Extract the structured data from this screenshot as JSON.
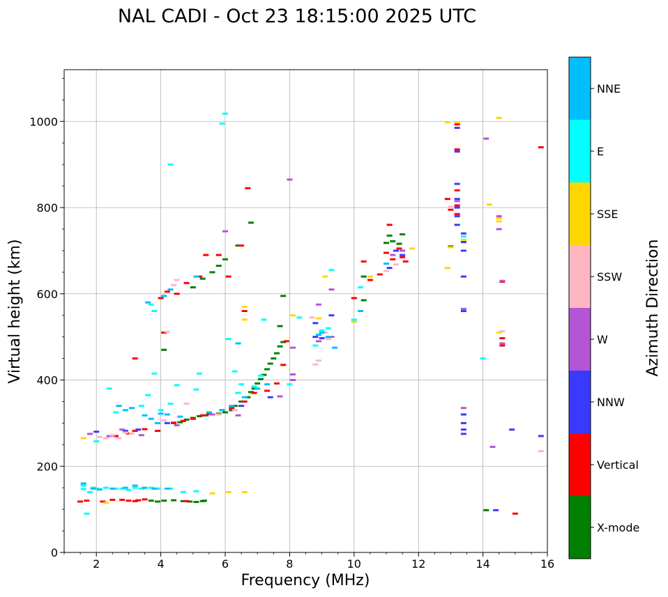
{
  "chart_data": {
    "type": "scatter",
    "title": "NAL CADI - Oct 23 18:15:00 2025 UTC",
    "xlabel": "Frequency (MHz)",
    "ylabel": "Virtual height (km)",
    "xlim": [
      1,
      16
    ],
    "ylim": [
      0,
      1120
    ],
    "xticks": [
      2,
      4,
      6,
      8,
      10,
      12,
      14,
      16
    ],
    "yticks": [
      0,
      200,
      400,
      600,
      800,
      1000
    ],
    "grid": true,
    "colorbar": {
      "label": "Azimuth Direction",
      "categories": [
        "X-mode",
        "Vertical",
        "NNW",
        "W",
        "SSW",
        "SSE",
        "E",
        "NNE"
      ],
      "colors": [
        "#008000",
        "#ff0000",
        "#3a3aff",
        "#b455d5",
        "#ffb6c1",
        "#ffd700",
        "#00ffff",
        "#00bfff"
      ]
    },
    "series": [
      {
        "name": "X-mode",
        "points": [
          [
            3.7,
            120
          ],
          [
            3.9,
            118
          ],
          [
            4.1,
            120
          ],
          [
            4.4,
            121
          ],
          [
            4.7,
            119
          ],
          [
            4.9,
            118
          ],
          [
            5.1,
            117
          ],
          [
            5.3,
            119
          ],
          [
            5.35,
            120
          ],
          [
            4.4,
            300
          ],
          [
            4.6,
            302
          ],
          [
            4.8,
            308
          ],
          [
            5.0,
            312
          ],
          [
            5.2,
            316
          ],
          [
            5.4,
            318
          ],
          [
            5.6,
            320
          ],
          [
            5.8,
            322
          ],
          [
            6.0,
            325
          ],
          [
            6.2,
            330
          ],
          [
            6.3,
            340
          ],
          [
            6.5,
            350
          ],
          [
            6.7,
            360
          ],
          [
            6.8,
            372
          ],
          [
            6.9,
            380
          ],
          [
            7.0,
            392
          ],
          [
            7.1,
            402
          ],
          [
            7.2,
            412
          ],
          [
            7.3,
            425
          ],
          [
            7.4,
            438
          ],
          [
            7.5,
            450
          ],
          [
            7.6,
            462
          ],
          [
            7.7,
            478
          ],
          [
            7.8,
            488
          ],
          [
            7.7,
            525
          ],
          [
            7.8,
            595
          ],
          [
            5.0,
            615
          ],
          [
            5.3,
            635
          ],
          [
            5.6,
            650
          ],
          [
            5.8,
            665
          ],
          [
            6.0,
            680
          ],
          [
            6.4,
            712
          ],
          [
            6.8,
            765
          ],
          [
            4.1,
            470
          ],
          [
            10.3,
            585
          ],
          [
            10.3,
            640
          ],
          [
            11.0,
            718
          ],
          [
            11.1,
            735
          ],
          [
            11.2,
            722
          ],
          [
            11.4,
            716
          ],
          [
            11.5,
            738
          ],
          [
            13.0,
            710
          ],
          [
            14.1,
            98
          ]
        ]
      },
      {
        "name": "Vertical",
        "points": [
          [
            1.5,
            118
          ],
          [
            1.7,
            120
          ],
          [
            2.2,
            118
          ],
          [
            2.5,
            122
          ],
          [
            2.8,
            122
          ],
          [
            3.0,
            120
          ],
          [
            3.2,
            119
          ],
          [
            3.3,
            121
          ],
          [
            3.5,
            123
          ],
          [
            4.8,
            119
          ],
          [
            4.4,
            301
          ],
          [
            4.7,
            305
          ],
          [
            5.0,
            310
          ],
          [
            5.3,
            318
          ],
          [
            5.5,
            322
          ],
          [
            5.9,
            330
          ],
          [
            6.2,
            335
          ],
          [
            6.6,
            350
          ],
          [
            6.9,
            370
          ],
          [
            7.3,
            375
          ],
          [
            7.6,
            392
          ],
          [
            7.8,
            435
          ],
          [
            7.9,
            490
          ],
          [
            2.6,
            270
          ],
          [
            3.0,
            276
          ],
          [
            3.2,
            282
          ],
          [
            3.5,
            286
          ],
          [
            3.9,
            282
          ],
          [
            4.0,
            590
          ],
          [
            4.2,
            605
          ],
          [
            4.5,
            600
          ],
          [
            4.8,
            625
          ],
          [
            5.2,
            640
          ],
          [
            5.4,
            690
          ],
          [
            5.8,
            690
          ],
          [
            6.1,
            640
          ],
          [
            6.5,
            712
          ],
          [
            6.6,
            560
          ],
          [
            6.7,
            845
          ],
          [
            3.2,
            450
          ],
          [
            4.1,
            510
          ],
          [
            10.0,
            590
          ],
          [
            10.3,
            675
          ],
          [
            10.5,
            632
          ],
          [
            10.8,
            645
          ],
          [
            11.0,
            695
          ],
          [
            11.2,
            680
          ],
          [
            11.4,
            705
          ],
          [
            11.5,
            685
          ],
          [
            11.6,
            675
          ],
          [
            11.1,
            760
          ],
          [
            12.9,
            820
          ],
          [
            13.0,
            795
          ],
          [
            13.2,
            840
          ],
          [
            13.2,
            805
          ],
          [
            13.2,
            785
          ],
          [
            13.2,
            935
          ],
          [
            13.2,
            993
          ],
          [
            14.6,
            480
          ],
          [
            14.6,
            497
          ],
          [
            14.6,
            628
          ],
          [
            15.0,
            90
          ],
          [
            15.8,
            940
          ]
        ]
      },
      {
        "name": "NNW",
        "points": [
          [
            2.0,
            280
          ],
          [
            2.9,
            282
          ],
          [
            3.3,
            285
          ],
          [
            4.2,
            300
          ],
          [
            6.5,
            340
          ],
          [
            7.4,
            360
          ],
          [
            8.8,
            500
          ],
          [
            8.8,
            532
          ],
          [
            9.0,
            497
          ],
          [
            9.3,
            550
          ],
          [
            11.3,
            700
          ],
          [
            11.1,
            660
          ],
          [
            11.5,
            690
          ],
          [
            13.2,
            855
          ],
          [
            13.2,
            820
          ],
          [
            13.2,
            800
          ],
          [
            13.2,
            780
          ],
          [
            13.2,
            760
          ],
          [
            13.2,
            930
          ],
          [
            13.2,
            985
          ],
          [
            13.4,
            740
          ],
          [
            13.4,
            720
          ],
          [
            13.4,
            700
          ],
          [
            13.4,
            560
          ],
          [
            13.4,
            640
          ],
          [
            13.4,
            320
          ],
          [
            13.4,
            300
          ],
          [
            13.4,
            285
          ],
          [
            13.4,
            275
          ],
          [
            14.4,
            98
          ],
          [
            14.9,
            285
          ],
          [
            15.8,
            270
          ]
        ]
      },
      {
        "name": "W",
        "points": [
          [
            1.8,
            275
          ],
          [
            2.4,
            270
          ],
          [
            2.8,
            285
          ],
          [
            3.4,
            272
          ],
          [
            4.5,
            295
          ],
          [
            5.6,
            320
          ],
          [
            6.4,
            318
          ],
          [
            7.7,
            362
          ],
          [
            8.1,
            400
          ],
          [
            8.1,
            413
          ],
          [
            8.1,
            475
          ],
          [
            8.9,
            490
          ],
          [
            8.9,
            575
          ],
          [
            9.3,
            500
          ],
          [
            9.3,
            610
          ],
          [
            11.2,
            690
          ],
          [
            11.5,
            700
          ],
          [
            13.2,
            815
          ],
          [
            13.4,
            565
          ],
          [
            13.4,
            335
          ],
          [
            14.1,
            960
          ],
          [
            14.3,
            245
          ],
          [
            14.5,
            780
          ],
          [
            14.5,
            750
          ],
          [
            14.6,
            485
          ],
          [
            14.6,
            630
          ],
          [
            8.0,
            865
          ],
          [
            6.0,
            745
          ]
        ]
      },
      {
        "name": "SSW",
        "points": [
          [
            2.1,
            268
          ],
          [
            2.3,
            265
          ],
          [
            2.5,
            272
          ],
          [
            2.7,
            265
          ],
          [
            2.9,
            278
          ],
          [
            3.1,
            276
          ],
          [
            4.1,
            306
          ],
          [
            4.2,
            512
          ],
          [
            4.4,
            620
          ],
          [
            4.8,
            345
          ],
          [
            5.8,
            320
          ],
          [
            6.3,
            330
          ],
          [
            8.7,
            545
          ],
          [
            8.8,
            436
          ],
          [
            8.9,
            445
          ],
          [
            9.1,
            510
          ],
          [
            9.2,
            495
          ],
          [
            11.0,
            653
          ],
          [
            11.3,
            668
          ],
          [
            13.0,
            802
          ],
          [
            14.6,
            513
          ],
          [
            15.8,
            235
          ],
          [
            4.5,
            632
          ]
        ]
      },
      {
        "name": "SSE",
        "points": [
          [
            1.6,
            265
          ],
          [
            2.3,
            115
          ],
          [
            5.6,
            137
          ],
          [
            6.1,
            140
          ],
          [
            6.6,
            140
          ],
          [
            6.6,
            540
          ],
          [
            6.6,
            570
          ],
          [
            8.1,
            550
          ],
          [
            8.9,
            543
          ],
          [
            9.1,
            640
          ],
          [
            10.0,
            535
          ],
          [
            10.5,
            640
          ],
          [
            11.8,
            705
          ],
          [
            12.9,
            998
          ],
          [
            12.9,
            660
          ],
          [
            13.0,
            708
          ],
          [
            13.2,
            998
          ],
          [
            13.4,
            725
          ],
          [
            14.2,
            807
          ],
          [
            14.5,
            1008
          ],
          [
            14.5,
            775
          ],
          [
            14.5,
            768
          ],
          [
            14.5,
            510
          ]
        ]
      },
      {
        "name": "E",
        "points": [
          [
            1.6,
            155
          ],
          [
            1.6,
            147
          ],
          [
            1.7,
            90
          ],
          [
            1.8,
            140
          ],
          [
            1.9,
            150
          ],
          [
            2.0,
            148
          ],
          [
            2.3,
            150
          ],
          [
            2.6,
            148
          ],
          [
            2.8,
            148
          ],
          [
            3.0,
            145
          ],
          [
            3.2,
            150
          ],
          [
            3.4,
            148
          ],
          [
            3.7,
            150
          ],
          [
            3.9,
            148
          ],
          [
            4.3,
            148
          ],
          [
            4.7,
            140
          ],
          [
            5.1,
            142
          ],
          [
            2.0,
            258
          ],
          [
            2.4,
            380
          ],
          [
            2.6,
            325
          ],
          [
            3.4,
            340
          ],
          [
            3.6,
            365
          ],
          [
            3.8,
            415
          ],
          [
            4.0,
            330
          ],
          [
            4.3,
            345
          ],
          [
            4.5,
            388
          ],
          [
            5.1,
            378
          ],
          [
            5.2,
            415
          ],
          [
            6.1,
            495
          ],
          [
            6.3,
            420
          ],
          [
            6.4,
            370
          ],
          [
            6.5,
            390
          ],
          [
            6.9,
            385
          ],
          [
            7.1,
            410
          ],
          [
            7.2,
            540
          ],
          [
            8.0,
            390
          ],
          [
            8.3,
            545
          ],
          [
            8.8,
            480
          ],
          [
            9.0,
            515
          ],
          [
            9.2,
            520
          ],
          [
            9.3,
            655
          ],
          [
            10.0,
            540
          ],
          [
            10.2,
            615
          ],
          [
            13.4,
            733
          ],
          [
            14.0,
            450
          ],
          [
            3.7,
            575
          ],
          [
            3.8,
            560
          ],
          [
            4.3,
            900
          ],
          [
            6.0,
            1018
          ],
          [
            5.9,
            995
          ]
        ]
      },
      {
        "name": "NNE",
        "points": [
          [
            1.6,
            160
          ],
          [
            1.9,
            148
          ],
          [
            2.1,
            146
          ],
          [
            2.5,
            148
          ],
          [
            2.9,
            150
          ],
          [
            3.2,
            155
          ],
          [
            3.5,
            150
          ],
          [
            3.8,
            148
          ],
          [
            4.2,
            148
          ],
          [
            2.7,
            340
          ],
          [
            2.9,
            330
          ],
          [
            3.1,
            335
          ],
          [
            3.5,
            318
          ],
          [
            3.7,
            310
          ],
          [
            3.9,
            300
          ],
          [
            4.0,
            322
          ],
          [
            4.2,
            320
          ],
          [
            4.6,
            315
          ],
          [
            5.5,
            325
          ],
          [
            5.9,
            330
          ],
          [
            6.2,
            340
          ],
          [
            6.6,
            360
          ],
          [
            7.0,
            380
          ],
          [
            7.3,
            390
          ],
          [
            6.4,
            485
          ],
          [
            8.9,
            505
          ],
          [
            9.0,
            510
          ],
          [
            9.2,
            500
          ],
          [
            9.4,
            475
          ],
          [
            3.6,
            580
          ],
          [
            4.1,
            595
          ],
          [
            4.3,
            610
          ],
          [
            5.1,
            640
          ],
          [
            10.2,
            560
          ],
          [
            11.0,
            670
          ]
        ]
      }
    ]
  }
}
